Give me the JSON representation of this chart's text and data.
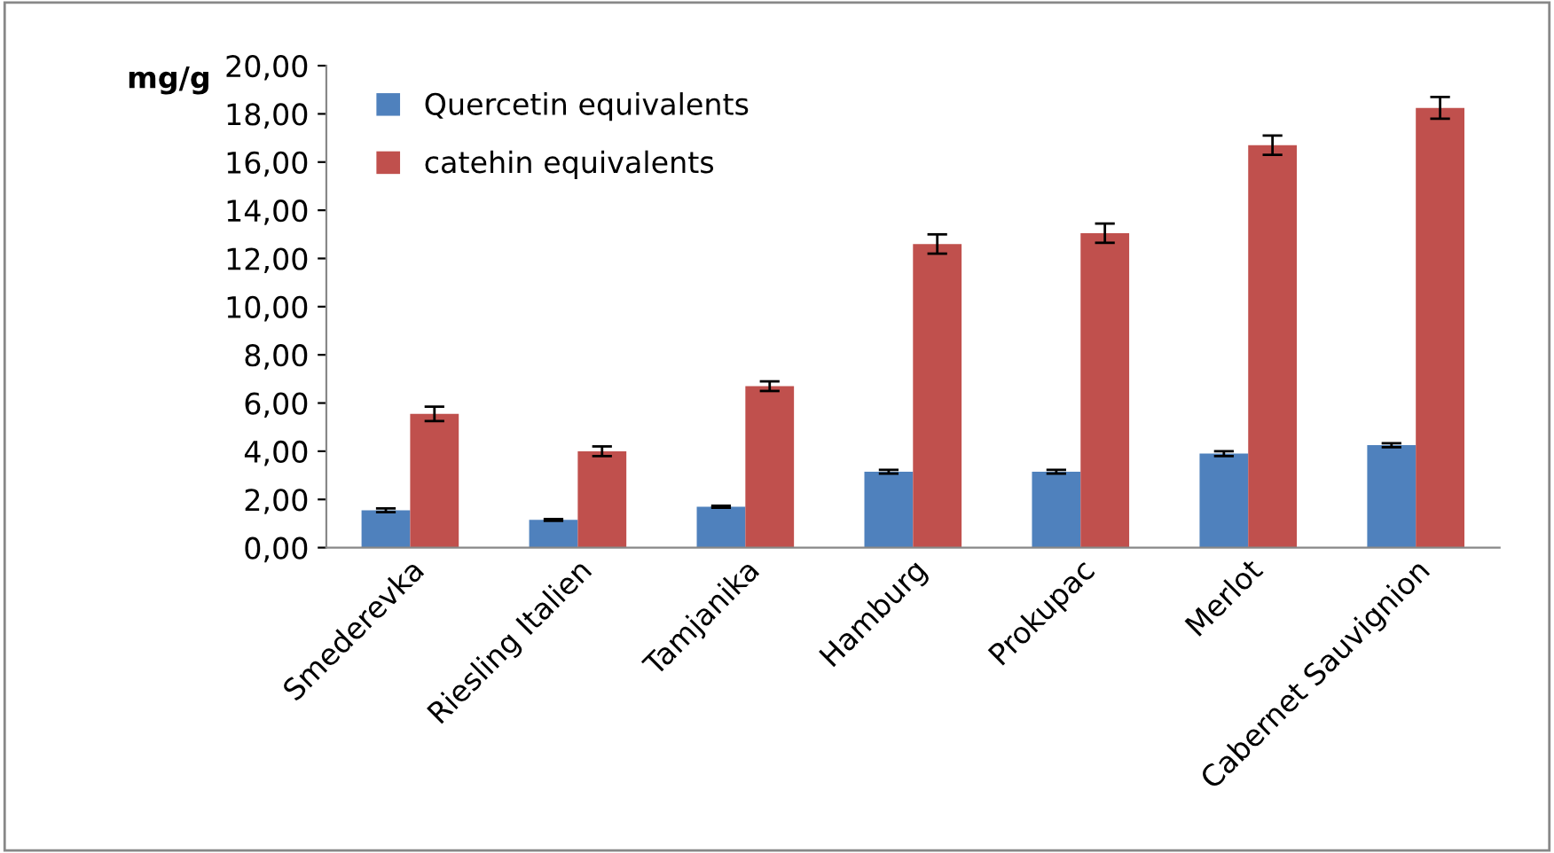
{
  "chart_data": {
    "type": "bar",
    "ylabel": "mg/g",
    "categories": [
      "Smederevka",
      "Riesling Italien",
      "Tamjanika",
      "Hamburg",
      "Prokupac",
      "Merlot",
      "Cabernet Sauvignion"
    ],
    "series": [
      {
        "name": "Quercetin equivalents",
        "color": "#4f81bd",
        "values": [
          1.55,
          1.15,
          1.7,
          3.15,
          3.15,
          3.9,
          4.25
        ],
        "errors": [
          0.08,
          0.04,
          0.04,
          0.08,
          0.08,
          0.1,
          0.08
        ]
      },
      {
        "name": "catehin equivalents",
        "color": "#c0504d",
        "values": [
          5.55,
          4.0,
          6.7,
          12.6,
          13.05,
          16.7,
          18.25
        ],
        "errors": [
          0.3,
          0.2,
          0.2,
          0.4,
          0.4,
          0.4,
          0.45
        ]
      }
    ],
    "ylim": [
      0,
      20
    ],
    "yticks": [
      {
        "value": 0,
        "label": "0,00"
      },
      {
        "value": 2,
        "label": "2,00"
      },
      {
        "value": 4,
        "label": "4,00"
      },
      {
        "value": 6,
        "label": "6,00"
      },
      {
        "value": 8,
        "label": "8,00"
      },
      {
        "value": 10,
        "label": "10,00"
      },
      {
        "value": 12,
        "label": "12,00"
      },
      {
        "value": 14,
        "label": "14,00"
      },
      {
        "value": 16,
        "label": "16,00"
      },
      {
        "value": 18,
        "label": "18,00"
      },
      {
        "value": 20,
        "label": "20,00"
      }
    ],
    "legend": "top left",
    "grid": false
  }
}
